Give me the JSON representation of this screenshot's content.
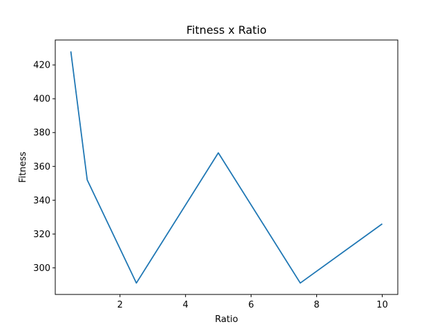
{
  "chart_data": {
    "type": "line",
    "title": "Fitness x Ratio",
    "xlabel": "Ratio",
    "ylabel": "Fitness",
    "xlim": [
      0.025,
      10.475
    ],
    "ylim": [
      284.25,
      434.75
    ],
    "xticks": [
      2,
      4,
      6,
      8,
      10
    ],
    "yticks": [
      300,
      320,
      340,
      360,
      380,
      400,
      420
    ],
    "grid": false,
    "series": [
      {
        "color": "#1f77b4",
        "x": [
          0.5,
          1,
          2.5,
          5,
          7.5,
          10
        ],
        "y": [
          428,
          352,
          291,
          368,
          291,
          326
        ]
      }
    ]
  }
}
